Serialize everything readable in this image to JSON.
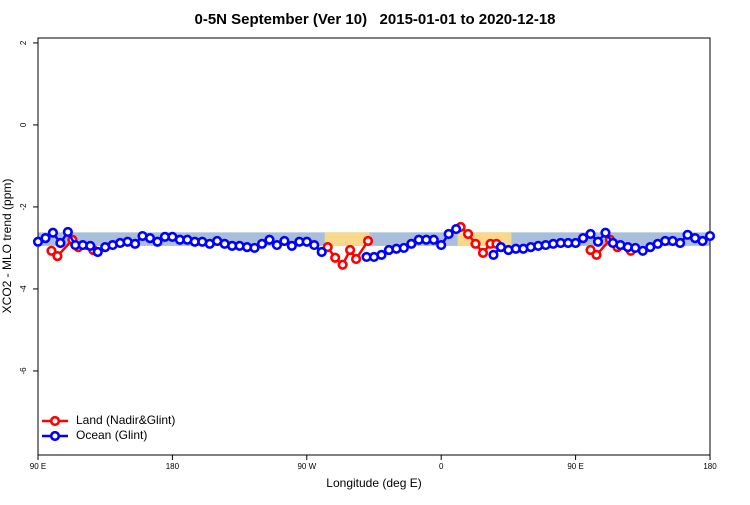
{
  "chart_data": {
    "type": "line",
    "title": "0-5N September (Ver 10)   2015-01-01 to 2020-12-18",
    "x_label": "Longitude (deg E)",
    "y_label": "XCO2 - MLO trend (ppm)",
    "xlim": [
      90,
      540
    ],
    "ylim": [
      -8.05,
      2.12
    ],
    "xticks": [
      {
        "value": 90,
        "label": "90 E"
      },
      {
        "value": 180,
        "label": "180"
      },
      {
        "value": 270,
        "label": "90 W"
      },
      {
        "value": 360,
        "label": "0"
      },
      {
        "value": 450,
        "label": "90 E"
      },
      {
        "value": 540,
        "label": "180"
      }
    ],
    "yticks": [
      2,
      0,
      -2,
      -4,
      -6
    ],
    "legend": "bottom-left",
    "shading": [
      {
        "x": [
          90,
          540
        ],
        "y": [
          -2.95,
          -2.62
        ],
        "color": "#a9bedb"
      },
      {
        "x": [
          282,
          312
        ],
        "y": [
          -2.95,
          -2.62
        ],
        "color": "#f8d98c"
      },
      {
        "x": [
          371,
          407
        ],
        "y": [
          -2.95,
          -2.62
        ],
        "color": "#f8d98c"
      }
    ],
    "series": [
      {
        "name": "Land (Nadir&Glint)",
        "color": "#ff0000",
        "x": [
          99,
          103,
          113,
          117,
          127,
          200,
          284,
          289,
          294,
          299,
          303,
          311,
          340,
          373,
          378,
          383,
          388,
          393,
          397,
          430,
          460,
          464,
          473,
          478,
          487
        ],
        "values": [
          -3.07,
          -3.2,
          -2.8,
          -2.98,
          -3.05,
          null,
          -2.98,
          -3.24,
          -3.41,
          -3.05,
          -3.27,
          -2.83,
          null,
          -2.49,
          -2.66,
          -2.9,
          -3.12,
          -2.9,
          -2.9,
          null,
          -3.05,
          -3.17,
          -2.8,
          -2.98,
          -3.07
        ]
      },
      {
        "name": "Ocean (Glint)",
        "color": "#0000ff",
        "x": [
          90,
          95,
          100,
          105,
          110,
          115,
          120,
          125,
          130,
          135,
          140,
          145,
          150,
          155,
          160,
          165,
          170,
          175,
          180,
          185,
          190,
          195,
          200,
          205,
          210,
          215,
          220,
          225,
          230,
          235,
          240,
          245,
          250,
          255,
          260,
          265,
          270,
          275,
          280,
          285,
          290,
          295,
          300,
          305,
          310,
          315,
          320,
          325,
          330,
          335,
          340,
          345,
          350,
          355,
          360,
          365,
          370,
          375,
          380,
          385,
          390,
          395,
          400,
          405,
          410,
          415,
          420,
          425,
          430,
          435,
          440,
          445,
          450,
          455,
          460,
          465,
          470,
          475,
          480,
          485,
          490,
          495,
          500,
          505,
          510,
          515,
          520,
          525,
          530,
          535,
          540
        ],
        "values": [
          -2.85,
          -2.76,
          -2.63,
          -2.88,
          -2.61,
          -2.93,
          -2.93,
          -2.95,
          -3.1,
          -2.98,
          -2.93,
          -2.88,
          -2.85,
          -2.9,
          -2.71,
          -2.76,
          -2.85,
          -2.73,
          -2.73,
          -2.8,
          -2.8,
          -2.85,
          -2.85,
          -2.9,
          -2.83,
          -2.9,
          -2.95,
          -2.95,
          -2.98,
          -3.0,
          -2.9,
          -2.8,
          -2.93,
          -2.83,
          -2.95,
          -2.85,
          -2.85,
          -2.93,
          -3.1,
          null,
          null,
          null,
          null,
          null,
          -3.22,
          -3.22,
          -3.17,
          -3.05,
          -3.02,
          -3.0,
          -2.9,
          -2.8,
          -2.8,
          -2.8,
          -2.93,
          -2.66,
          -2.54,
          null,
          null,
          null,
          null,
          -3.17,
          -2.98,
          -3.05,
          -3.02,
          -3.02,
          -2.98,
          -2.95,
          -2.93,
          -2.9,
          -2.88,
          -2.88,
          -2.88,
          -2.76,
          -2.66,
          -2.85,
          -2.63,
          -2.88,
          -2.93,
          -2.98,
          -3.0,
          -3.07,
          -2.98,
          -2.9,
          -2.83,
          -2.83,
          -2.88,
          -2.68,
          -2.76,
          -2.83,
          -2.71
        ]
      }
    ]
  }
}
